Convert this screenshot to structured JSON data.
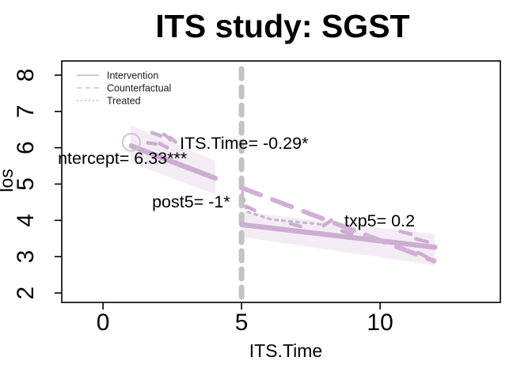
{
  "title": "ITS study: SGST",
  "chart_data": {
    "type": "line",
    "title": "ITS study: SGST",
    "xlabel": "ITS.Time",
    "ylabel": "los",
    "xlim": [
      -1.49,
      14.34
    ],
    "ylim": [
      1.74,
      8.39
    ],
    "xticks": [
      0,
      5,
      10
    ],
    "yticks": [
      2,
      3,
      4,
      5,
      6,
      7,
      8
    ],
    "grid": "off",
    "intervention_time": 5,
    "legend": {
      "position": "top-left",
      "entries": [
        {
          "label": "Intervention",
          "style": "solid"
        },
        {
          "label": "Counterfactual",
          "style": "dashed"
        },
        {
          "label": "Treated",
          "style": "dotted"
        }
      ]
    },
    "series": [
      {
        "name": "intervention-pre",
        "style": "solid",
        "points": [
          [
            1.02,
            6.05
          ],
          [
            4.05,
            5.16
          ]
        ]
      },
      {
        "name": "intervention-post",
        "style": "solid",
        "points": [
          [
            5.02,
            3.88
          ],
          [
            11.98,
            3.26
          ]
        ]
      },
      {
        "name": "counterfactual",
        "style": "long-dash",
        "points": [
          [
            4.99,
            4.9
          ],
          [
            11.95,
            2.88
          ]
        ]
      },
      {
        "name": "treated",
        "style": "dotted",
        "points": [
          [
            5.03,
            4.78
          ],
          [
            5.18,
            4.24
          ],
          [
            6.1,
            4.02
          ],
          [
            7.9,
            3.89
          ]
        ]
      }
    ],
    "confidence_bands": [
      {
        "name": "pre",
        "points": [
          [
            1.0,
            6.62
          ],
          [
            4.05,
            5.64
          ],
          [
            4.05,
            4.72
          ],
          [
            1.0,
            5.58
          ]
        ]
      },
      {
        "name": "post",
        "points": [
          [
            5.0,
            4.24
          ],
          [
            11.98,
            3.62
          ],
          [
            11.98,
            2.76
          ],
          [
            5.0,
            3.54
          ]
        ]
      }
    ],
    "data_marks": [
      [
        1.93,
        6.37,
        20,
        12
      ],
      [
        2.32,
        6.29,
        42,
        11
      ],
      [
        1.76,
        6.12,
        8,
        10
      ],
      [
        2.18,
        6.06,
        28,
        11
      ],
      [
        2.52,
        6.22,
        40,
        9
      ],
      [
        5.32,
        4.33,
        25,
        12
      ],
      [
        6.95,
        3.87,
        15,
        13
      ],
      [
        8.1,
        3.93,
        -35,
        12
      ],
      [
        8.8,
        3.67,
        15,
        13
      ],
      [
        10.92,
        3.66,
        15,
        14
      ],
      [
        11.5,
        3.45,
        15,
        15
      ],
      [
        11.58,
        3.03,
        28,
        16
      ]
    ],
    "start_marker": {
      "x": 1.02,
      "y": 6.15,
      "r": 11
    },
    "annotations": [
      {
        "text": "ntercept= 6.33***",
        "x": -1.63,
        "y": 5.56
      },
      {
        "text": "ITS.Time= -0.29*",
        "x": 2.77,
        "y": 5.97
      },
      {
        "text": "post5= -1*",
        "x": 1.77,
        "y": 4.36
      },
      {
        "text": "txp5= 0.2",
        "x": 8.71,
        "y": 3.83
      }
    ],
    "colors": {
      "intervention_line": "#cbaed0",
      "counterfactual_line": "#cfb2d3",
      "treated_line": "#c6b6cb",
      "band_fill": "#e9d9eb",
      "reference_line": "#c3c3c3",
      "axis": "#000000",
      "text": "#000000",
      "legend_solid": "#d9c2dc",
      "legend_dashed": "#e0cbe1",
      "legend_dotted": "#cbc4ce"
    }
  }
}
